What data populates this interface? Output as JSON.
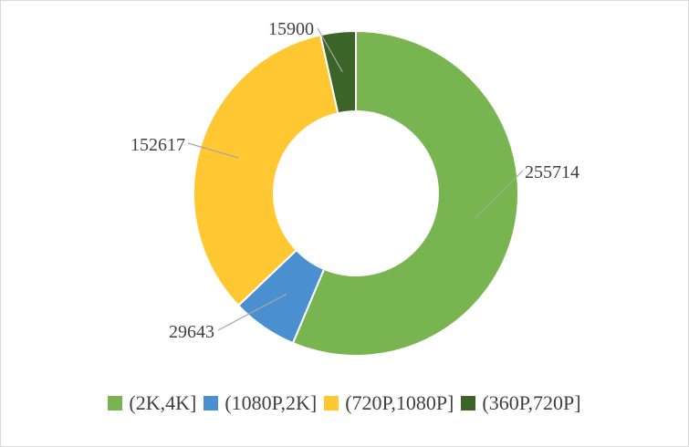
{
  "chart_data": {
    "type": "pie",
    "variant": "doughnut",
    "title": "",
    "categories": [
      "(2K,4K]",
      "(1080P,2K]",
      "(720P,1080P]",
      "(360P,720P]"
    ],
    "values": [
      255714,
      29643,
      152617,
      15900
    ],
    "colors": [
      "#78b450",
      "#4a90d0",
      "#ffc832",
      "#3c6428"
    ],
    "data_labels": [
      "255714",
      "29643",
      "152617",
      "15900"
    ],
    "legend_position": "bottom",
    "start_angle_deg": 0,
    "direction": "clockwise"
  }
}
